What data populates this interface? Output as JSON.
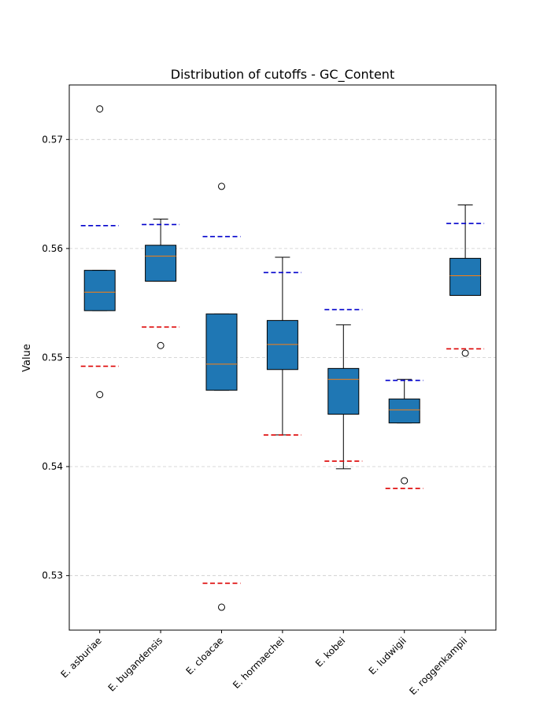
{
  "chart_data": {
    "type": "boxplot",
    "title": "Distribution of cutoffs - GC_Content",
    "xlabel": "",
    "ylabel": "Value",
    "ylim": [
      0.525,
      0.575
    ],
    "yticks": [
      0.53,
      0.54,
      0.55,
      0.56,
      0.57
    ],
    "ytick_labels": [
      "0.53",
      "0.54",
      "0.55",
      "0.56",
      "0.57"
    ],
    "grid": "horizontal dashed",
    "colors": {
      "box_fill": "#1f77b4",
      "median": "#ff7f0e",
      "upper_cutoff": "#0000cc",
      "lower_cutoff": "#dd0000",
      "grid": "#cccccc"
    },
    "categories": [
      "E. asburiae",
      "E. bugandensis",
      "E. cloacae",
      "E. hormaechei",
      "E. kobei",
      "E. ludwigii",
      "E. roggenkampii"
    ],
    "boxes": [
      {
        "whisker_low": 0.5543,
        "q1": 0.5543,
        "median": 0.556,
        "q3": 0.558,
        "whisker_high": 0.558,
        "outliers": [
          0.5728,
          0.5466
        ]
      },
      {
        "whisker_low": 0.557,
        "q1": 0.557,
        "median": 0.5593,
        "q3": 0.5603,
        "whisker_high": 0.5627,
        "outliers": [
          0.5511
        ]
      },
      {
        "whisker_low": 0.547,
        "q1": 0.547,
        "median": 0.5494,
        "q3": 0.554,
        "whisker_high": 0.554,
        "outliers": [
          0.5657,
          0.5271
        ]
      },
      {
        "whisker_low": 0.5429,
        "q1": 0.5489,
        "median": 0.5512,
        "q3": 0.5534,
        "whisker_high": 0.5592,
        "outliers": []
      },
      {
        "whisker_low": 0.5398,
        "q1": 0.5448,
        "median": 0.548,
        "q3": 0.549,
        "whisker_high": 0.553,
        "outliers": []
      },
      {
        "whisker_low": 0.544,
        "q1": 0.544,
        "median": 0.5452,
        "q3": 0.5462,
        "whisker_high": 0.548,
        "outliers": [
          0.5387
        ]
      },
      {
        "whisker_low": 0.5557,
        "q1": 0.5557,
        "median": 0.5575,
        "q3": 0.5591,
        "whisker_high": 0.564,
        "outliers": [
          0.5504
        ]
      }
    ],
    "upper_cutoffs": [
      0.5621,
      0.5622,
      0.5611,
      0.5578,
      0.5544,
      0.5479,
      0.5623
    ],
    "lower_cutoffs": [
      0.5492,
      0.5528,
      0.5293,
      0.5429,
      0.5405,
      0.538,
      0.5508
    ]
  }
}
